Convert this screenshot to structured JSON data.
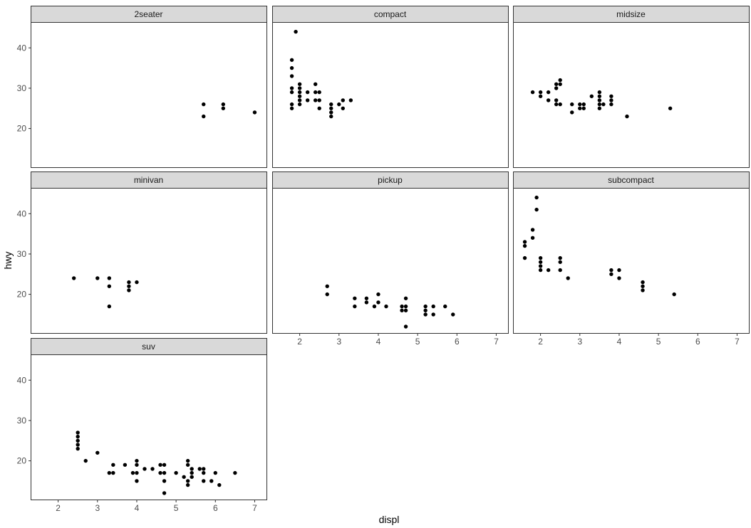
{
  "chart_data": {
    "type": "scatter",
    "xlabel": "displ",
    "ylabel": "hwy",
    "xlim": [
      1.3,
      7.3
    ],
    "ylim": [
      10.4,
      46.4
    ],
    "x_ticks": [
      2,
      3,
      4,
      5,
      6,
      7
    ],
    "y_ticks": [
      20,
      30,
      40
    ],
    "grid": false,
    "point_color": "#000000",
    "strip_fill": "#d9d9d9",
    "panels": [
      {
        "name": "2seater",
        "points": [
          [
            5.7,
            26
          ],
          [
            5.7,
            23
          ],
          [
            6.2,
            26
          ],
          [
            6.2,
            25
          ],
          [
            7.0,
            24
          ]
        ]
      },
      {
        "name": "compact",
        "points": [
          [
            1.8,
            25
          ],
          [
            1.8,
            26
          ],
          [
            1.8,
            29
          ],
          [
            1.8,
            30
          ],
          [
            1.8,
            33
          ],
          [
            1.8,
            35
          ],
          [
            1.8,
            37
          ],
          [
            1.9,
            44
          ],
          [
            2.0,
            26
          ],
          [
            2.0,
            27
          ],
          [
            2.0,
            28
          ],
          [
            2.0,
            29
          ],
          [
            2.0,
            30
          ],
          [
            2.0,
            31
          ],
          [
            2.2,
            27
          ],
          [
            2.2,
            29
          ],
          [
            2.4,
            27
          ],
          [
            2.4,
            29
          ],
          [
            2.4,
            31
          ],
          [
            2.5,
            25
          ],
          [
            2.5,
            27
          ],
          [
            2.5,
            29
          ],
          [
            2.8,
            23
          ],
          [
            2.8,
            24
          ],
          [
            2.8,
            25
          ],
          [
            2.8,
            26
          ],
          [
            3.0,
            26
          ],
          [
            3.1,
            25
          ],
          [
            3.1,
            27
          ],
          [
            3.3,
            27
          ]
        ]
      },
      {
        "name": "midsize",
        "points": [
          [
            1.8,
            29
          ],
          [
            2.0,
            28
          ],
          [
            2.0,
            29
          ],
          [
            2.2,
            27
          ],
          [
            2.2,
            29
          ],
          [
            2.4,
            26
          ],
          [
            2.4,
            27
          ],
          [
            2.4,
            30
          ],
          [
            2.4,
            31
          ],
          [
            2.5,
            26
          ],
          [
            2.5,
            31
          ],
          [
            2.5,
            32
          ],
          [
            2.8,
            24
          ],
          [
            2.8,
            26
          ],
          [
            3.0,
            25
          ],
          [
            3.0,
            26
          ],
          [
            3.1,
            25
          ],
          [
            3.1,
            26
          ],
          [
            3.3,
            28
          ],
          [
            3.5,
            25
          ],
          [
            3.5,
            26
          ],
          [
            3.5,
            27
          ],
          [
            3.5,
            28
          ],
          [
            3.5,
            29
          ],
          [
            3.6,
            26
          ],
          [
            3.8,
            26
          ],
          [
            3.8,
            27
          ],
          [
            3.8,
            28
          ],
          [
            4.2,
            23
          ],
          [
            5.3,
            25
          ]
        ]
      },
      {
        "name": "minivan",
        "points": [
          [
            2.4,
            24
          ],
          [
            3.0,
            24
          ],
          [
            3.3,
            17
          ],
          [
            3.3,
            22
          ],
          [
            3.3,
            24
          ],
          [
            3.8,
            21
          ],
          [
            3.8,
            22
          ],
          [
            3.8,
            23
          ],
          [
            4.0,
            23
          ]
        ]
      },
      {
        "name": "pickup",
        "points": [
          [
            2.7,
            20
          ],
          [
            2.7,
            22
          ],
          [
            3.4,
            17
          ],
          [
            3.4,
            19
          ],
          [
            3.7,
            18
          ],
          [
            3.7,
            19
          ],
          [
            3.9,
            17
          ],
          [
            4.0,
            18
          ],
          [
            4.0,
            20
          ],
          [
            4.2,
            17
          ],
          [
            4.6,
            16
          ],
          [
            4.6,
            17
          ],
          [
            4.7,
            12
          ],
          [
            4.7,
            16
          ],
          [
            4.7,
            17
          ],
          [
            4.7,
            19
          ],
          [
            5.2,
            15
          ],
          [
            5.2,
            16
          ],
          [
            5.2,
            17
          ],
          [
            5.4,
            15
          ],
          [
            5.4,
            17
          ],
          [
            5.7,
            17
          ],
          [
            5.9,
            15
          ]
        ]
      },
      {
        "name": "subcompact",
        "points": [
          [
            1.6,
            29
          ],
          [
            1.6,
            32
          ],
          [
            1.6,
            33
          ],
          [
            1.8,
            34
          ],
          [
            1.8,
            36
          ],
          [
            1.9,
            41
          ],
          [
            1.9,
            44
          ],
          [
            2.0,
            26
          ],
          [
            2.0,
            27
          ],
          [
            2.0,
            28
          ],
          [
            2.0,
            29
          ],
          [
            2.2,
            26
          ],
          [
            2.5,
            26
          ],
          [
            2.5,
            28
          ],
          [
            2.5,
            29
          ],
          [
            2.7,
            24
          ],
          [
            3.8,
            25
          ],
          [
            3.8,
            26
          ],
          [
            4.0,
            24
          ],
          [
            4.0,
            26
          ],
          [
            4.6,
            21
          ],
          [
            4.6,
            22
          ],
          [
            4.6,
            23
          ],
          [
            5.4,
            20
          ]
        ]
      },
      {
        "name": "suv",
        "points": [
          [
            2.5,
            23
          ],
          [
            2.5,
            24
          ],
          [
            2.5,
            25
          ],
          [
            2.5,
            26
          ],
          [
            2.5,
            27
          ],
          [
            2.7,
            20
          ],
          [
            3.0,
            22
          ],
          [
            3.3,
            17
          ],
          [
            3.4,
            17
          ],
          [
            3.4,
            19
          ],
          [
            3.7,
            19
          ],
          [
            3.9,
            17
          ],
          [
            4.0,
            15
          ],
          [
            4.0,
            17
          ],
          [
            4.0,
            19
          ],
          [
            4.0,
            20
          ],
          [
            4.2,
            18
          ],
          [
            4.4,
            18
          ],
          [
            4.6,
            17
          ],
          [
            4.6,
            19
          ],
          [
            4.7,
            12
          ],
          [
            4.7,
            15
          ],
          [
            4.7,
            17
          ],
          [
            4.7,
            19
          ],
          [
            5.0,
            17
          ],
          [
            5.2,
            16
          ],
          [
            5.3,
            14
          ],
          [
            5.3,
            15
          ],
          [
            5.3,
            19
          ],
          [
            5.3,
            20
          ],
          [
            5.4,
            16
          ],
          [
            5.4,
            17
          ],
          [
            5.4,
            18
          ],
          [
            5.6,
            18
          ],
          [
            5.7,
            15
          ],
          [
            5.7,
            17
          ],
          [
            5.7,
            18
          ],
          [
            5.9,
            15
          ],
          [
            6.0,
            17
          ],
          [
            6.1,
            14
          ],
          [
            6.5,
            17
          ]
        ]
      }
    ]
  }
}
